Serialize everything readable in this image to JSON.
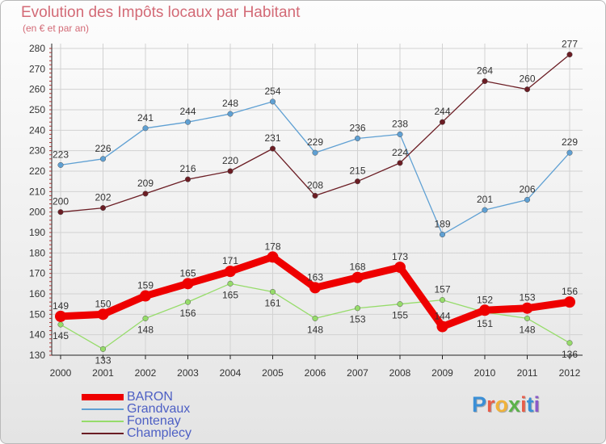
{
  "title": "Evolution des Impôts locaux par Habitant",
  "subtitle": "(en € et par an)",
  "logo": {
    "text": "Proxiti",
    "colors": [
      "#3b8fd6",
      "#e85d4a",
      "#f0b23a",
      "#5bb24a",
      "#e85d4a",
      "#3b8fd6",
      "#8a5ac8"
    ]
  },
  "chart_data": {
    "type": "line",
    "title": "Evolution des Impôts locaux par Habitant",
    "ylabel": "(en € et par an)",
    "xlabel": "",
    "ylim": [
      130,
      280
    ],
    "yticks": [
      130,
      140,
      150,
      160,
      170,
      180,
      190,
      200,
      210,
      220,
      230,
      240,
      250,
      260,
      270,
      280
    ],
    "categories": [
      "2000",
      "2001",
      "2002",
      "2003",
      "2004",
      "2005",
      "2006",
      "2007",
      "2008",
      "2009",
      "2010",
      "2011",
      "2012"
    ],
    "grid": true,
    "legend_position": "bottom-left",
    "series": [
      {
        "name": "BARON",
        "color": "#ee0000",
        "values": [
          149,
          150,
          159,
          165,
          171,
          178,
          163,
          168,
          173,
          144,
          152,
          153,
          156
        ]
      },
      {
        "name": "Grandvaux",
        "color": "#5fa0d3",
        "values": [
          223,
          226,
          241,
          244,
          248,
          254,
          229,
          236,
          238,
          189,
          201,
          206,
          229
        ]
      },
      {
        "name": "Fontenay",
        "color": "#96dc6a",
        "values": [
          145,
          133,
          148,
          156,
          165,
          161,
          148,
          153,
          155,
          157,
          151,
          148,
          136
        ]
      },
      {
        "name": "Champlecy",
        "color": "#6b1d24",
        "values": [
          200,
          202,
          209,
          216,
          220,
          231,
          208,
          215,
          224,
          244,
          264,
          260,
          277
        ]
      }
    ]
  }
}
